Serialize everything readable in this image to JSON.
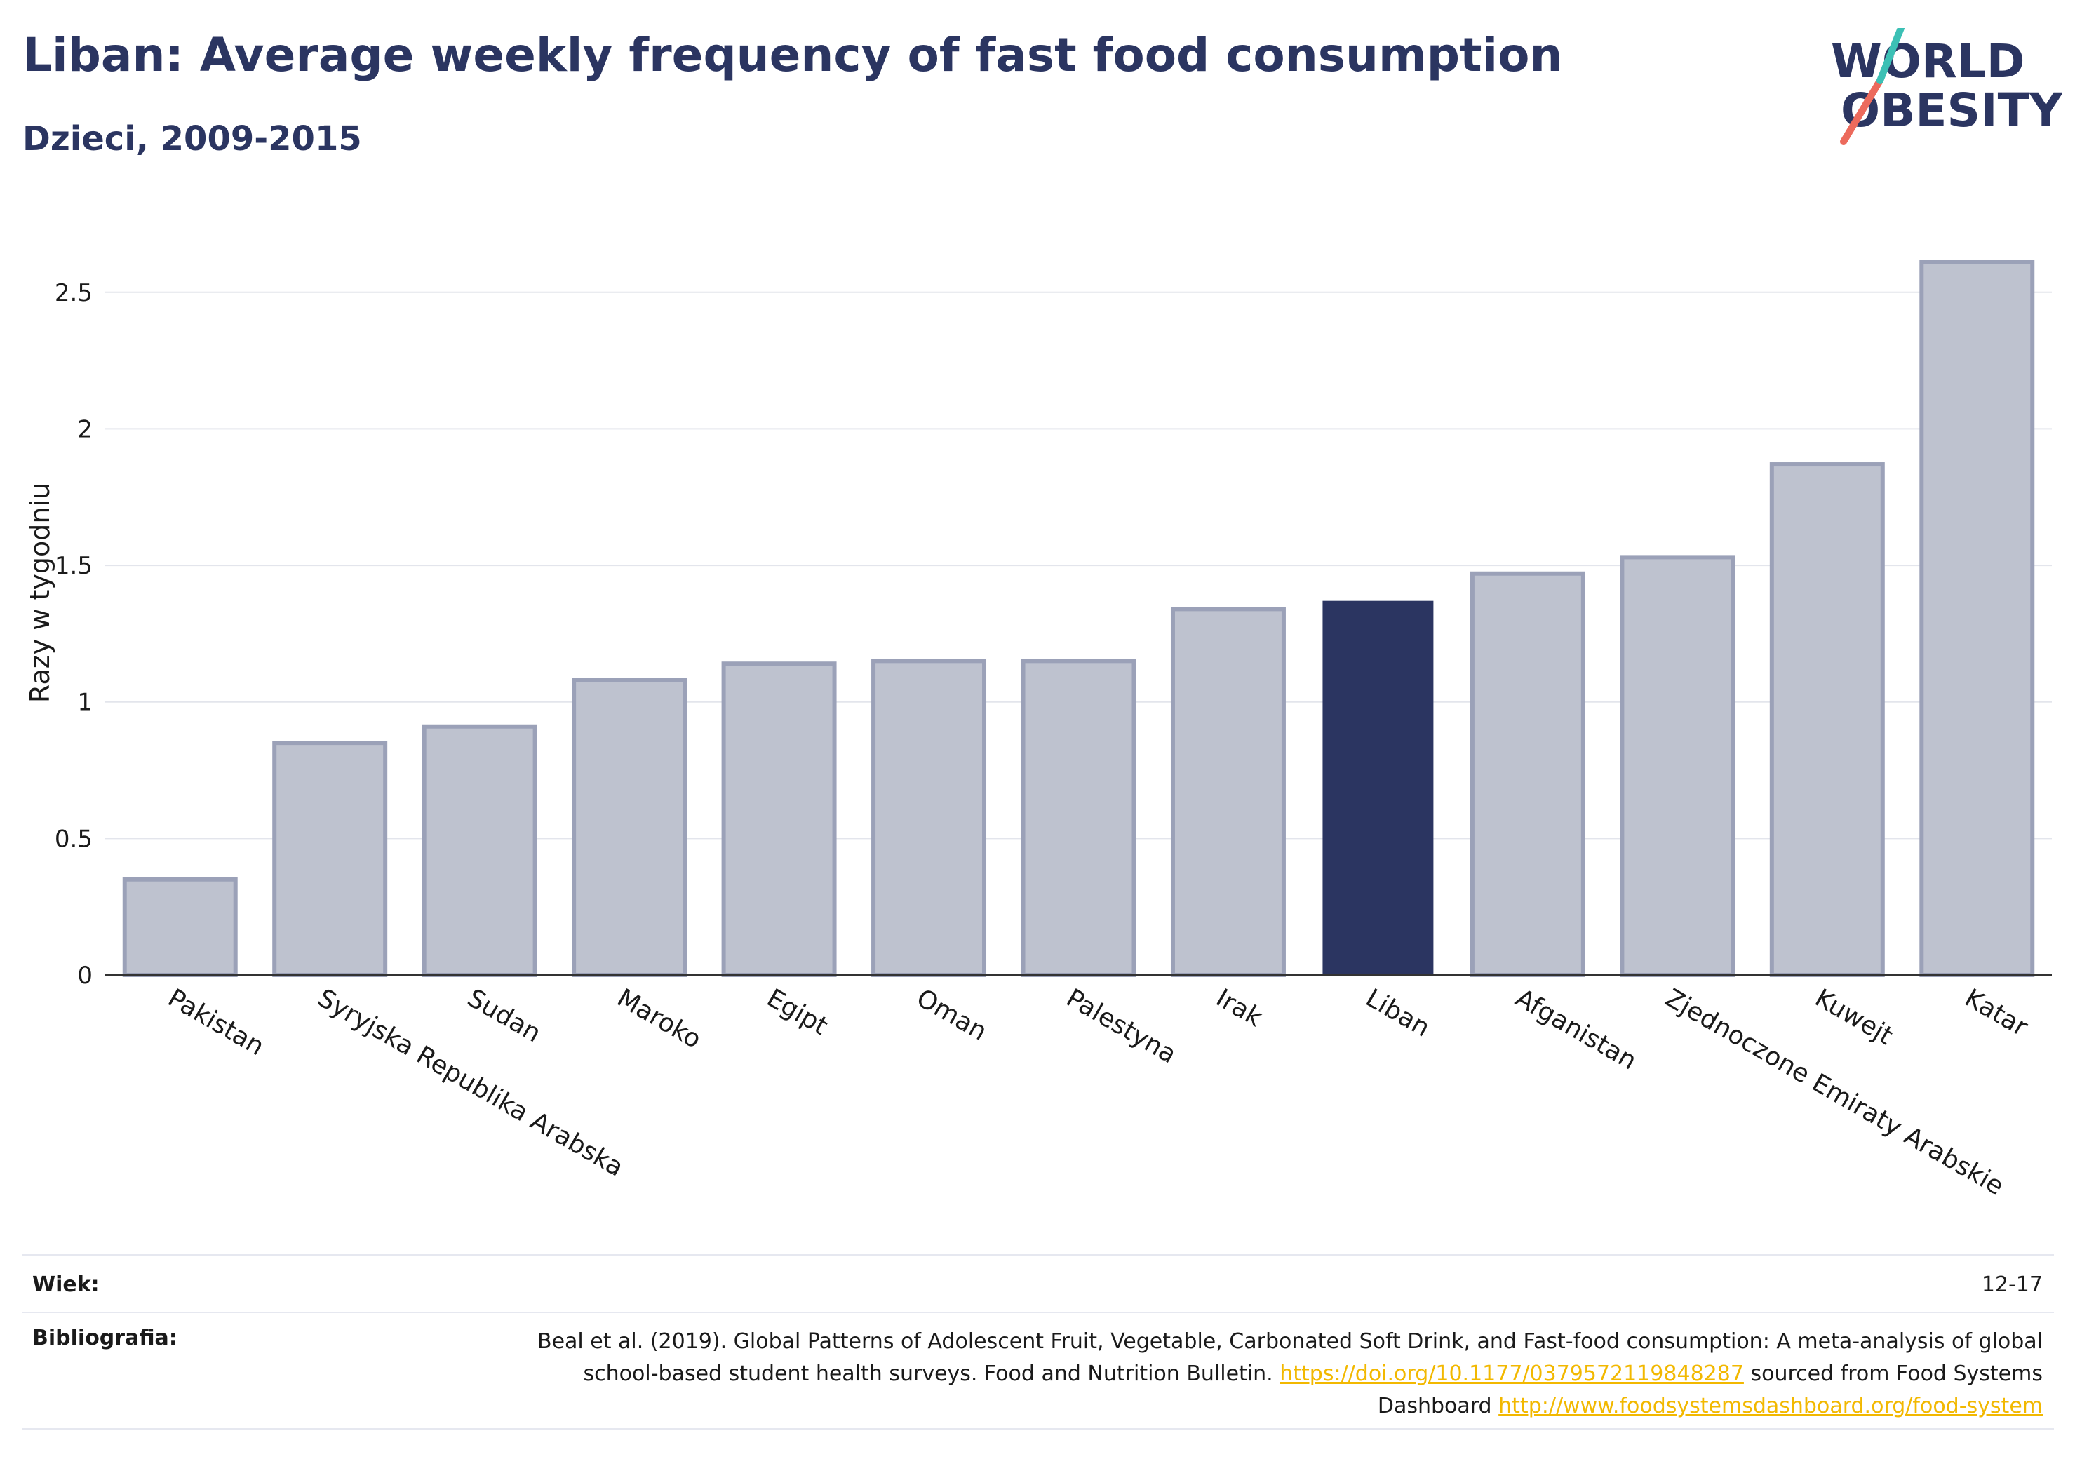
{
  "header": {
    "title": "Liban: Average weekly frequency of fast food consumption",
    "subtitle": "Dzieci, 2009-2015",
    "logo_line1": "WORLD",
    "logo_line2": "OBESITY"
  },
  "colors": {
    "title": "#2b3561",
    "bar_default": "#bec2cf",
    "bar_default_border": "#9ba1b8",
    "bar_highlight": "#2b3561",
    "logo_teal": "#3cc0b5",
    "logo_coral": "#ec6a5c",
    "link": "#f2b800"
  },
  "chart_data": {
    "type": "bar",
    "categories": [
      "Pakistan",
      "Syryjska Republika Arabska",
      "Sudan",
      "Maroko",
      "Egipt",
      "Oman",
      "Palestyna",
      "Irak",
      "Liban",
      "Afganistan",
      "Zjednoczone Emiraty Arabskie",
      "Kuwejt",
      "Katar"
    ],
    "values": [
      0.35,
      0.85,
      0.91,
      1.08,
      1.14,
      1.15,
      1.15,
      1.34,
      1.37,
      1.47,
      1.53,
      1.87,
      2.61
    ],
    "highlight": "Liban",
    "ylabel": "Razy w tygodniu",
    "xlabel": "",
    "ylim": [
      0,
      2.8
    ],
    "yticks": [
      0,
      0.5,
      1,
      1.5,
      2,
      2.5
    ],
    "ytick_labels": [
      "0",
      "0.5",
      "1",
      "1.5",
      "2",
      "2.5"
    ],
    "grid": true
  },
  "footer": {
    "age_label": "Wiek:",
    "age_value": "12-17",
    "biblio_label": "Bibliografia:",
    "biblio_text_1": "Beal et al. (2019). Global Patterns of Adolescent Fruit, Vegetable, Carbonated Soft Drink, and Fast-food consumption: A meta-analysis of global school-based student health surveys. Food and Nutrition Bulletin.",
    "biblio_link_1": "https://doi.org/10.1177/0379572119848287",
    "biblio_text_2": "sourced from Food Systems Dashboard",
    "biblio_link_2": "http://www.foodsystemsdashboard.org/food-system"
  }
}
